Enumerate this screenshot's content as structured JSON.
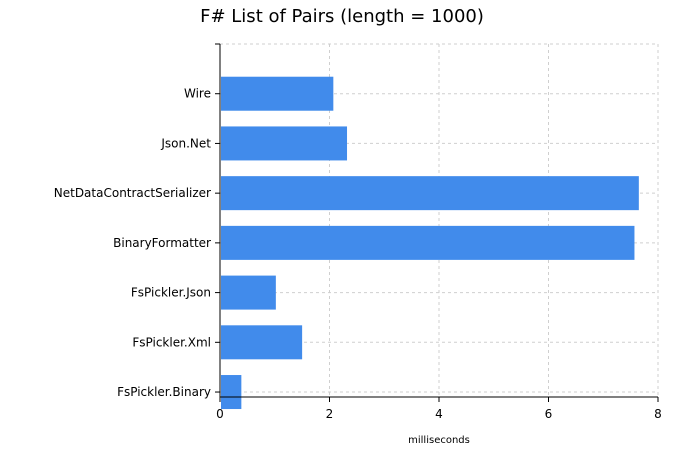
{
  "chart_data": {
    "type": "bar",
    "orientation": "horizontal",
    "title": "F# List of Pairs (length = 1000)",
    "xlabel": "milliseconds",
    "ylabel": "",
    "categories": [
      "Wire",
      "Json.Net",
      "NetDataContractSerializer",
      "BinaryFormatter",
      "FsPickler.Json",
      "FsPickler.Xml",
      "FsPickler.Binary"
    ],
    "values": [
      2.07,
      2.32,
      7.65,
      7.57,
      1.02,
      1.5,
      0.39
    ],
    "xlim": [
      0,
      8
    ],
    "xticks": [
      0,
      2,
      4,
      6,
      8
    ],
    "grid": true,
    "bar_color": "#418BEB",
    "grid_color": "#CFCFCF"
  }
}
